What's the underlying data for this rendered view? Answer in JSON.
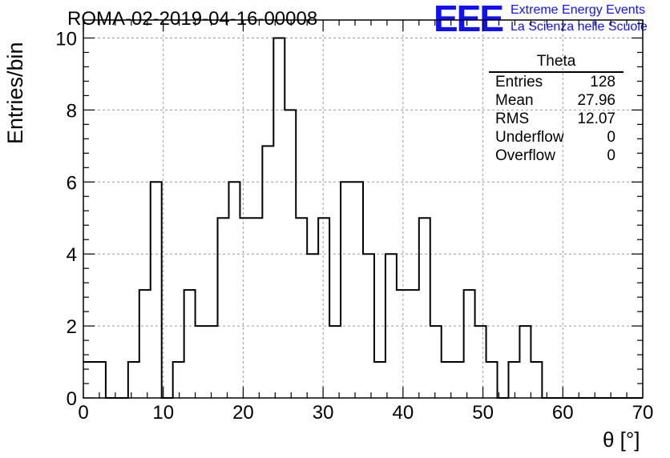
{
  "chart_data": {
    "type": "histogram",
    "title": "ROMA-02-2019-04-16-00008",
    "xlabel": "θ [°]",
    "ylabel": "Entries/bin",
    "xlim": [
      0,
      70
    ],
    "ylim": [
      0,
      10.5
    ],
    "grid": true,
    "bin_width": 1.4,
    "bin_edges_start": 0,
    "x_ticks": [
      "0",
      "10",
      "20",
      "30",
      "40",
      "50",
      "60",
      "70"
    ],
    "y_ticks": [
      "0",
      "2",
      "4",
      "6",
      "8",
      "10"
    ],
    "x_tick_values": [
      0,
      10,
      20,
      30,
      40,
      50,
      60,
      70
    ],
    "y_tick_values": [
      0,
      2,
      4,
      6,
      8,
      10
    ],
    "values": [
      1,
      1,
      0,
      0,
      1,
      3,
      6,
      0,
      1,
      3,
      2,
      2,
      5,
      6,
      5,
      5,
      7,
      10,
      8,
      5,
      4,
      5,
      2,
      6,
      6,
      4,
      1,
      4,
      3,
      3,
      5,
      2,
      1,
      1,
      3,
      2,
      1,
      0,
      1,
      2,
      1,
      0,
      0,
      0,
      0,
      0,
      0,
      0,
      0,
      0
    ],
    "stats": {
      "name": "Theta",
      "rows": [
        {
          "label": "Entries",
          "value": "128"
        },
        {
          "label": "Mean",
          "value": "27.96"
        },
        {
          "label": "RMS",
          "value": "12.07"
        },
        {
          "label": "Underflow",
          "value": "0"
        },
        {
          "label": "Overflow",
          "value": "0"
        }
      ]
    }
  },
  "logo": {
    "mark": "EEE",
    "line1": "Extreme Energy Events",
    "line2": "La Scienza nelle Scuole"
  },
  "colors": {
    "logo": "#1010ff",
    "line": "#000000",
    "grid": "#9a9a9a"
  }
}
